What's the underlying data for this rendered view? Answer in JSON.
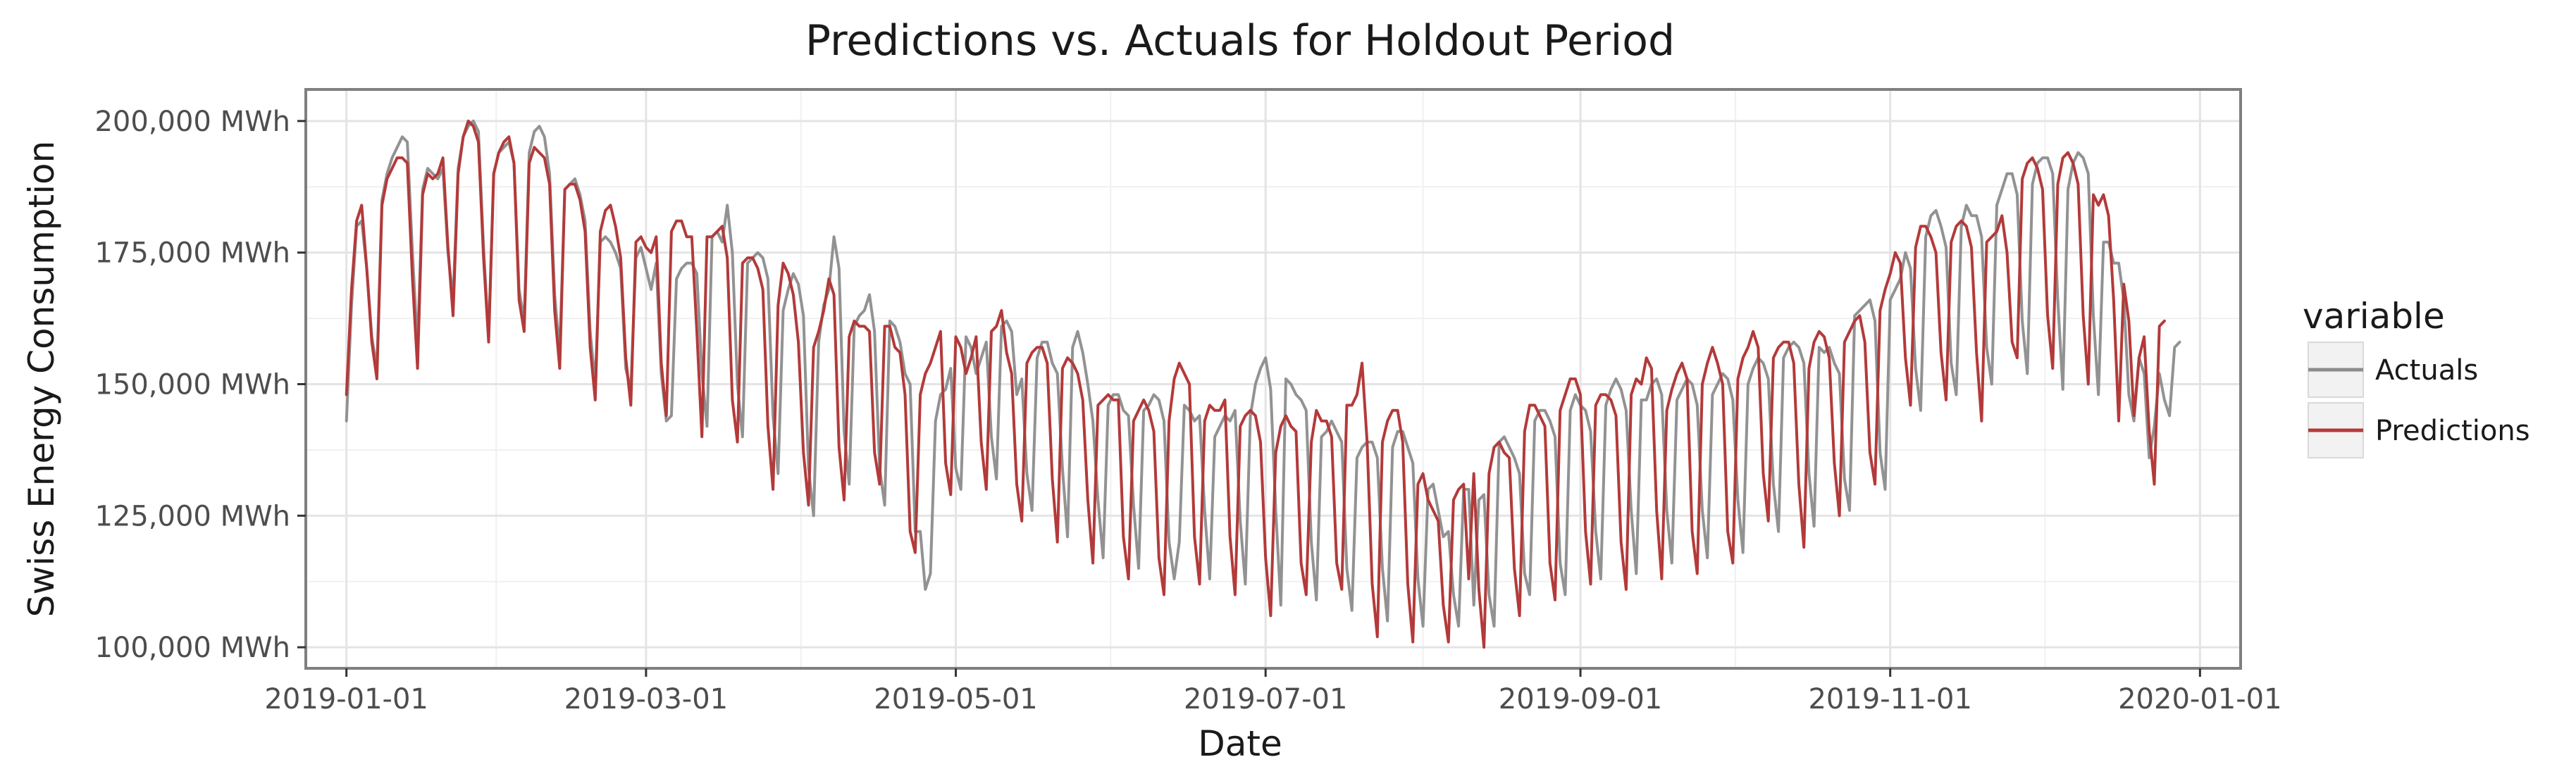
{
  "chart_data": {
    "type": "line",
    "title": "Predictions vs. Actuals for Holdout Period",
    "xlabel": "Date",
    "ylabel": "Swiss Energy Consumption",
    "x_scale": "date",
    "xlim": [
      "2018-12-24",
      "2020-01-09"
    ],
    "ylim": [
      96000,
      206000
    ],
    "x_ticks": [
      "2019-01-01",
      "2019-03-01",
      "2019-05-01",
      "2019-07-01",
      "2019-09-01",
      "2019-11-01",
      "2020-01-01"
    ],
    "y_ticks": [
      100000,
      125000,
      150000,
      175000,
      200000
    ],
    "y_tick_labels": [
      "100,000 MWh",
      "125,000 MWh",
      "150,000 MWh",
      "175,000 MWh",
      "200,000 MWh"
    ],
    "grid": true,
    "legend": {
      "title": "variable",
      "position": "right"
    },
    "start_date": "2019-01-01",
    "series": [
      {
        "name": "Actuals",
        "color": "#8c8c8c",
        "values": [
          143000,
          165000,
          180000,
          181000,
          172000,
          159000,
          153000,
          185000,
          190000,
          193000,
          195000,
          197000,
          196000,
          175000,
          157000,
          187000,
          191000,
          190000,
          189000,
          191000,
          175000,
          166000,
          191000,
          197000,
          199000,
          200000,
          198000,
          176000,
          159000,
          190000,
          194000,
          195000,
          196000,
          192000,
          168000,
          162000,
          194000,
          198000,
          199000,
          197000,
          190000,
          167000,
          156000,
          187000,
          188000,
          189000,
          186000,
          181000,
          160000,
          150000,
          177000,
          178000,
          177000,
          175000,
          172000,
          153000,
          149000,
          174000,
          176000,
          172000,
          168000,
          173000,
          152000,
          143000,
          144000,
          170000,
          172000,
          173000,
          173000,
          171000,
          152000,
          142000,
          178000,
          179000,
          177000,
          184000,
          175000,
          150000,
          140000,
          173000,
          174000,
          175000,
          174000,
          170000,
          144000,
          133000,
          164000,
          168000,
          171000,
          169000,
          163000,
          134000,
          125000,
          158000,
          165000,
          168000,
          178000,
          172000,
          141000,
          131000,
          161000,
          163000,
          164000,
          167000,
          160000,
          134000,
          127000,
          162000,
          161000,
          158000,
          152000,
          150000,
          122000,
          122000,
          111000,
          114000,
          143000,
          148000,
          149000,
          153000,
          134000,
          130000,
          159000,
          157000,
          152000,
          155000,
          158000,
          140000,
          132000,
          161000,
          162000,
          160000,
          148000,
          151000,
          133000,
          126000,
          155000,
          158000,
          158000,
          154000,
          152000,
          134000,
          121000,
          157000,
          160000,
          156000,
          150000,
          143000,
          128000,
          117000,
          146000,
          148000,
          148000,
          145000,
          144000,
          127000,
          115000,
          145000,
          146000,
          148000,
          147000,
          143000,
          120000,
          113000,
          120000,
          146000,
          145000,
          143000,
          144000,
          126000,
          113000,
          140000,
          142000,
          144000,
          143000,
          145000,
          124000,
          112000,
          144000,
          150000,
          153000,
          155000,
          149000,
          126000,
          108000,
          151000,
          150000,
          148000,
          147000,
          145000,
          120000,
          109000,
          140000,
          141000,
          143000,
          141000,
          139000,
          115000,
          107000,
          136000,
          138000,
          139000,
          139000,
          136000,
          115000,
          105000,
          138000,
          141000,
          141000,
          138000,
          135000,
          113000,
          104000,
          130000,
          131000,
          126000,
          121000,
          122000,
          110000,
          104000,
          130000,
          130000,
          108000,
          128000,
          129000,
          110000,
          104000,
          139000,
          140000,
          138000,
          136000,
          133000,
          114000,
          110000,
          143000,
          145000,
          145000,
          143000,
          140000,
          116000,
          110000,
          145000,
          148000,
          146000,
          145000,
          141000,
          122000,
          113000,
          146000,
          149000,
          151000,
          149000,
          145000,
          126000,
          114000,
          147000,
          147000,
          150000,
          151000,
          148000,
          126000,
          116000,
          147000,
          149000,
          151000,
          150000,
          146000,
          126000,
          117000,
          148000,
          150000,
          152000,
          151000,
          147000,
          128000,
          118000,
          150000,
          153000,
          155000,
          154000,
          151000,
          131000,
          122000,
          155000,
          157000,
          158000,
          157000,
          154000,
          133000,
          123000,
          157000,
          156000,
          157000,
          154000,
          152000,
          132000,
          126000,
          163000,
          164000,
          165000,
          166000,
          162000,
          137000,
          130000,
          166000,
          168000,
          170000,
          175000,
          172000,
          153000,
          145000,
          178000,
          182000,
          183000,
          180000,
          176000,
          154000,
          148000,
          180000,
          184000,
          182000,
          182000,
          178000,
          157000,
          150000,
          184000,
          187000,
          190000,
          190000,
          186000,
          162000,
          152000,
          188000,
          192000,
          193000,
          193000,
          190000,
          166000,
          149000,
          187000,
          192000,
          194000,
          193000,
          190000,
          163000,
          148000,
          177000,
          177000,
          173000,
          173000,
          166000,
          148000,
          143000,
          155000,
          152000,
          136000,
          142000,
          152000,
          147000,
          144000,
          157000,
          158000
        ]
      },
      {
        "name": "Predictions",
        "color": "#b33a3a",
        "values": [
          148000,
          168000,
          181000,
          184000,
          172000,
          158000,
          151000,
          184000,
          189000,
          191000,
          193000,
          193000,
          192000,
          170000,
          153000,
          186000,
          190000,
          189000,
          190000,
          193000,
          176000,
          163000,
          190000,
          197000,
          200000,
          199000,
          196000,
          174000,
          158000,
          190000,
          194000,
          196000,
          197000,
          192000,
          166000,
          160000,
          192000,
          195000,
          194000,
          193000,
          188000,
          164000,
          153000,
          187000,
          188000,
          188000,
          185000,
          179000,
          157000,
          147000,
          179000,
          183000,
          184000,
          180000,
          174000,
          155000,
          146000,
          177000,
          178000,
          176000,
          175000,
          178000,
          154000,
          144000,
          179000,
          181000,
          181000,
          178000,
          178000,
          160000,
          140000,
          178000,
          178000,
          179000,
          180000,
          174000,
          147000,
          139000,
          173000,
          174000,
          174000,
          172000,
          168000,
          142000,
          130000,
          165000,
          173000,
          171000,
          167000,
          158000,
          137000,
          127000,
          157000,
          160000,
          164000,
          170000,
          167000,
          138000,
          128000,
          159000,
          162000,
          161000,
          161000,
          160000,
          137000,
          131000,
          161000,
          161000,
          157000,
          156000,
          148000,
          122000,
          118000,
          148000,
          152000,
          154000,
          157000,
          160000,
          135000,
          129000,
          159000,
          157000,
          152000,
          155000,
          159000,
          139000,
          130000,
          160000,
          161000,
          164000,
          156000,
          152000,
          131000,
          124000,
          154000,
          156000,
          157000,
          157000,
          154000,
          132000,
          120000,
          153000,
          155000,
          154000,
          152000,
          147000,
          128000,
          116000,
          146000,
          147000,
          148000,
          147000,
          147000,
          121000,
          113000,
          143000,
          145000,
          147000,
          145000,
          141000,
          117000,
          110000,
          143000,
          151000,
          154000,
          152000,
          150000,
          121000,
          112000,
          143000,
          146000,
          145000,
          145000,
          147000,
          121000,
          110000,
          142000,
          144000,
          145000,
          144000,
          139000,
          117000,
          106000,
          137000,
          142000,
          144000,
          142000,
          141000,
          116000,
          110000,
          139000,
          145000,
          143000,
          143000,
          140000,
          116000,
          111000,
          146000,
          146000,
          148000,
          154000,
          139000,
          112000,
          102000,
          139000,
          143000,
          145000,
          145000,
          139000,
          112000,
          101000,
          131000,
          133000,
          128000,
          126000,
          124000,
          108000,
          101000,
          128000,
          130000,
          131000,
          113000,
          133000,
          111000,
          100000,
          133000,
          138000,
          139000,
          137000,
          136000,
          115000,
          106000,
          141000,
          146000,
          146000,
          144000,
          142000,
          116000,
          109000,
          145000,
          148000,
          151000,
          151000,
          148000,
          122000,
          112000,
          146000,
          148000,
          148000,
          147000,
          144000,
          120000,
          111000,
          148000,
          151000,
          150000,
          155000,
          153000,
          126000,
          113000,
          145000,
          149000,
          152000,
          154000,
          151000,
          122000,
          114000,
          150000,
          154000,
          157000,
          154000,
          150000,
          122000,
          116000,
          151000,
          155000,
          157000,
          160000,
          157000,
          133000,
          124000,
          155000,
          157000,
          158000,
          158000,
          154000,
          131000,
          119000,
          153000,
          158000,
          160000,
          159000,
          155000,
          135000,
          125000,
          158000,
          160000,
          162000,
          163000,
          158000,
          137000,
          131000,
          164000,
          168000,
          171000,
          175000,
          173000,
          155000,
          146000,
          176000,
          180000,
          180000,
          178000,
          175000,
          156000,
          147000,
          177000,
          180000,
          181000,
          180000,
          176000,
          156000,
          143000,
          177000,
          178000,
          179000,
          182000,
          175000,
          158000,
          155000,
          189000,
          192000,
          193000,
          191000,
          187000,
          163000,
          153000,
          188000,
          193000,
          194000,
          192000,
          188000,
          163000,
          150000,
          186000,
          184000,
          186000,
          182000,
          166000,
          143000,
          169000,
          162000,
          144000,
          155000,
          159000,
          141000,
          131000,
          161000,
          162000
        ]
      }
    ]
  }
}
